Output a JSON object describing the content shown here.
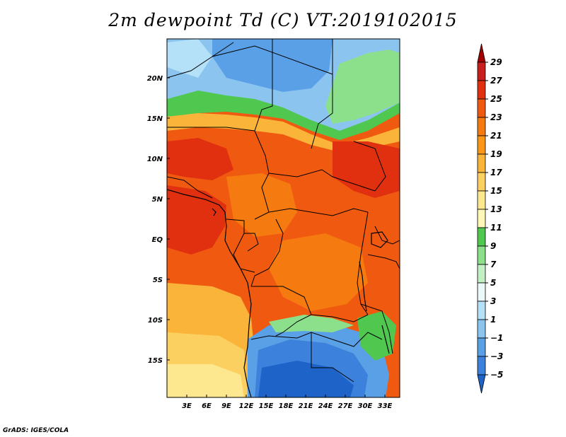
{
  "title": "2m dewpoint Td (C) VT:2019102015",
  "credit": "GrADS: IGES/COLA",
  "map": {
    "lat_labels": [
      "20N",
      "15N",
      "10N",
      "5N",
      "EQ",
      "5S",
      "10S",
      "15S"
    ],
    "lon_labels": [
      "3E",
      "6E",
      "9E",
      "12E",
      "15E",
      "18E",
      "21E",
      "24E",
      "27E",
      "30E",
      "33E"
    ]
  },
  "colorbar": {
    "labels": [
      "29",
      "27",
      "25",
      "23",
      "21",
      "19",
      "17",
      "15",
      "13",
      "11",
      "9",
      "7",
      "5",
      "3",
      "1",
      "−1",
      "−3",
      "−5"
    ],
    "colors": [
      "#a00000",
      "#c81e1e",
      "#e03010",
      "#f05a10",
      "#f57a10",
      "#fa9618",
      "#fbb43a",
      "#fcd060",
      "#fde890",
      "#fff7b8",
      "#50c850",
      "#8ce08c",
      "#c3f0c3",
      "#eaf8f8",
      "#b4e0f8",
      "#8cc4f0",
      "#5aa0e6",
      "#3c82dc",
      "#1e64c8"
    ]
  }
}
